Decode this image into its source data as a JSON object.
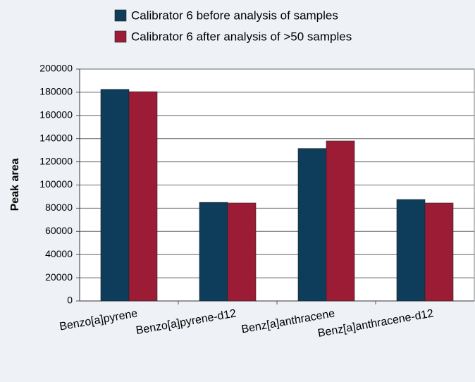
{
  "chart_data": {
    "type": "bar",
    "y_label": "Peak area",
    "categories": [
      "Benzo[a]pyrene",
      "Benzo[a]pyrene-d12",
      "Benz[a]anthracene",
      "Benz[a]anthracene-d12"
    ],
    "series": [
      {
        "name": "Calibrator 6 before analysis of samples",
        "color": "#0e3d5b",
        "values": [
          182500,
          85000,
          131500,
          87500
        ]
      },
      {
        "name": "Calibrator 6 after analysis of >50 samples",
        "color": "#9c1c36",
        "values": [
          180500,
          84500,
          138000,
          84500
        ]
      }
    ],
    "ylim": [
      0,
      200000
    ],
    "yticks": [
      0,
      20000,
      40000,
      60000,
      80000,
      100000,
      120000,
      140000,
      160000,
      180000,
      200000
    ],
    "grid": true
  }
}
